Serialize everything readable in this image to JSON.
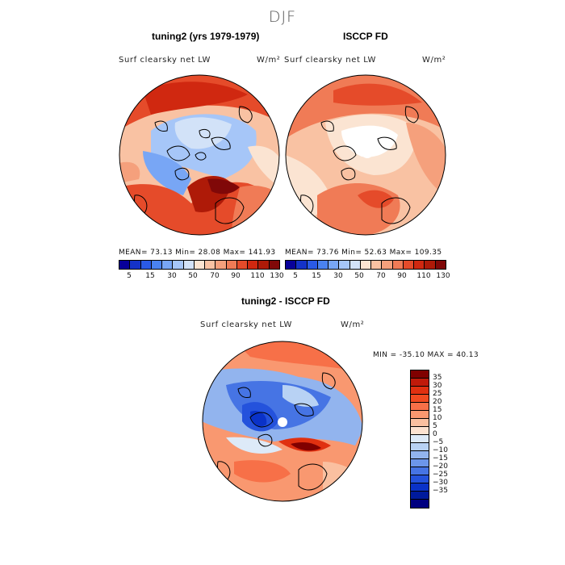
{
  "season": "DJF",
  "panel1": {
    "title": "tuning2 (yrs 1979-1979)",
    "variable": "Surf clearsky net LW",
    "units": "W/m²",
    "stats": "MEAN=  73.13  Min=  28.08  Max= 141.93"
  },
  "panel2": {
    "title": "ISCCP FD",
    "variable": "Surf clearsky net LW",
    "units": "W/m²",
    "stats": "MEAN=  73.76  Min=  52.63  Max= 109.35"
  },
  "panel3": {
    "title": "tuning2 - ISCCP FD",
    "variable": "Surf clearsky net LW",
    "units": "W/m²",
    "minmax": "MIN = -35.10  MAX =  40.13"
  },
  "abs_colorbar": {
    "colors": [
      "#08009a",
      "#1432c8",
      "#2a5ae6",
      "#4a82f0",
      "#78a6f5",
      "#a6c6f8",
      "#d2e2f8",
      "#fbe4d2",
      "#f9c2a3",
      "#f5a07c",
      "#f07b56",
      "#e54b2a",
      "#d02810",
      "#ae1a08",
      "#800808"
    ],
    "labels": [
      "5",
      "15",
      "30",
      "50",
      "70",
      "90",
      "110",
      "130"
    ]
  },
  "diff_colorbar": {
    "colors": [
      "#800000",
      "#c01a0a",
      "#e03010",
      "#f04a20",
      "#f77048",
      "#f99870",
      "#fac0a0",
      "#fce2d0",
      "#ddeaf8",
      "#b8d2f4",
      "#92b4ee",
      "#6c96ea",
      "#4674e4",
      "#2452dc",
      "#0a32c8",
      "#001a9c",
      "#000080"
    ],
    "labels": [
      "35",
      "30",
      "25",
      "20",
      "15",
      "10",
      "5",
      "0",
      "−5",
      "−10",
      "−15",
      "−20",
      "−25",
      "−30",
      "−35"
    ]
  }
}
